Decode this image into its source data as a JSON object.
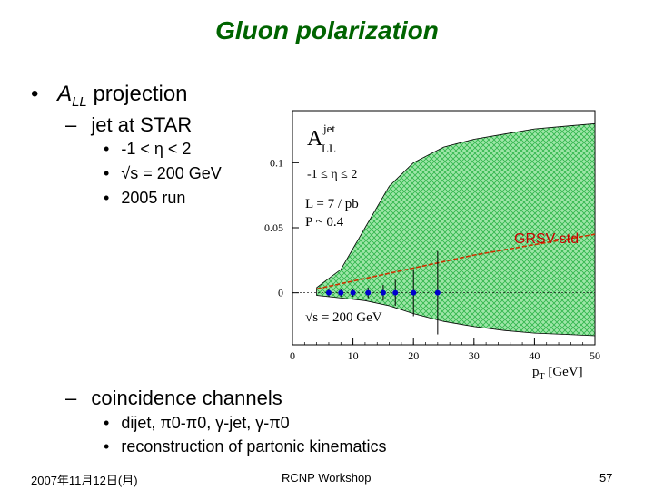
{
  "slide": {
    "title": "Gluon polarization",
    "bullet1": {
      "marker": "•",
      "text_main": "A",
      "text_sub": "LL",
      "text_rest": " projection"
    },
    "sub1": {
      "marker": "–",
      "text": "jet at STAR"
    },
    "sub1_items": [
      {
        "marker": "•",
        "text": "-1 < η < 2"
      },
      {
        "marker": "•",
        "text": "√s = 200 GeV"
      },
      {
        "marker": "•",
        "text": "2005 run"
      }
    ],
    "sub2": {
      "marker": "–",
      "text": "coincidence channels"
    },
    "sub2_items": [
      {
        "marker": "•",
        "text": "dijet, π0-π0, γ-jet, γ-π0"
      },
      {
        "marker": "•",
        "text": "reconstruction of partonic kinematics"
      }
    ],
    "footer": {
      "date": "2007年11月12日(月)",
      "event": "RCNP Workshop",
      "page": "57"
    }
  },
  "colors": {
    "title": "#006400",
    "band": "#33cc55",
    "curve": "#cc3300",
    "points": "#0000cc",
    "label_red": "#cc0000"
  },
  "chart_data": {
    "type": "line",
    "title": "A_LL^jet",
    "ylabel_main": "A",
    "ylabel_sub": "LL",
    "ylabel_sup": "jet",
    "annotations": [
      "-1 ≤ η ≤ 2",
      "L = 7 / pb",
      "P ~ 0.4",
      "√s = 200 GeV"
    ],
    "curve_label": "GRSV-std",
    "xlabel": "p_T [GeV]",
    "xlabel_main": "p",
    "xlabel_sub": "T",
    "xlabel_unit": " [GeV]",
    "xlim": [
      0,
      50
    ],
    "ylim": [
      -0.04,
      0.14
    ],
    "x_ticks": [
      0,
      10,
      20,
      30,
      40,
      50
    ],
    "y_ticks": [
      0,
      0.05,
      0.1
    ],
    "y_tick_labels": [
      "0",
      "0.05",
      "0.1"
    ],
    "band": {
      "x": [
        4,
        8,
        12,
        16,
        20,
        25,
        30,
        35,
        40,
        45,
        50
      ],
      "upper": [
        0.004,
        0.018,
        0.05,
        0.082,
        0.1,
        0.112,
        0.118,
        0.122,
        0.126,
        0.128,
        0.13
      ],
      "lower": [
        -0.002,
        -0.004,
        -0.006,
        -0.01,
        -0.016,
        -0.022,
        -0.026,
        -0.029,
        -0.031,
        -0.032,
        -0.033
      ]
    },
    "series": [
      {
        "name": "GRSV-std",
        "x": [
          4,
          10,
          15,
          20,
          25,
          30,
          35,
          40,
          45,
          50
        ],
        "values": [
          0.003,
          0.009,
          0.014,
          0.019,
          0.024,
          0.029,
          0.033,
          0.037,
          0.041,
          0.045
        ]
      },
      {
        "name": "2005 run",
        "x": [
          6,
          8,
          10,
          12.5,
          15,
          17,
          20,
          24
        ],
        "values": [
          0,
          0,
          0,
          0,
          0,
          0,
          0,
          0
        ],
        "err": [
          0.003,
          0.003,
          0.003,
          0.004,
          0.006,
          0.01,
          0.018,
          0.032
        ]
      }
    ]
  }
}
